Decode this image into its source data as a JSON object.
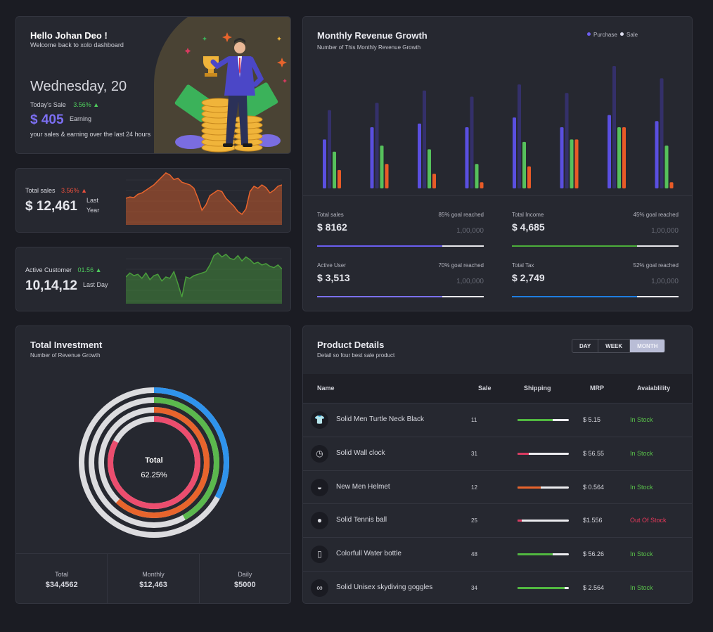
{
  "welcome": {
    "greeting": "Hello Johan Deo !",
    "subtitle": "Welcome back to xolo dashboard",
    "day": "Wednesday, 20",
    "todays_sale_label": "Today's Sale",
    "todays_sale_pct": "3.56% ▲",
    "earning_value": "$ 405",
    "earning_label": "Earning",
    "note": "your sales & earning over the last 24 hours"
  },
  "total_sales_card": {
    "label": "Total sales",
    "pct": "3.56% ▲",
    "value": "$ 12,461",
    "period_line1": "Last",
    "period_line2": "Year",
    "color": "#e8642c",
    "trend": [
      40,
      42,
      41,
      46,
      48,
      52,
      56,
      60,
      66,
      72,
      78,
      75,
      68,
      70,
      64,
      62,
      60,
      55,
      40,
      22,
      30,
      44,
      48,
      52,
      50,
      40,
      34,
      28,
      20,
      16,
      24,
      50,
      58,
      55,
      60,
      56,
      48,
      52,
      58,
      60
    ]
  },
  "active_customer_card": {
    "label": "Active Customer",
    "pct": "01.56 ▲",
    "value": "10,14,12",
    "period": "Last Day",
    "color": "#4a9e3c",
    "trend": [
      40,
      46,
      42,
      44,
      38,
      46,
      36,
      42,
      44,
      34,
      40,
      38,
      48,
      30,
      10,
      40,
      38,
      42,
      44,
      46,
      48,
      58,
      72,
      76,
      70,
      74,
      68,
      66,
      72,
      64,
      70,
      66,
      60,
      62,
      58,
      60,
      56,
      54,
      58,
      52
    ]
  },
  "revenue": {
    "title": "Monthly Revenue Growth",
    "subtitle": "Number of This Monthly Revenue Growth",
    "legend": [
      {
        "name": "Purchase",
        "color": "#6d5ff0"
      },
      {
        "name": "Sale",
        "color": "#dfe0f0"
      }
    ],
    "series_colors": [
      "#5a4fe0",
      "#34306a",
      "#56c15c",
      "#e85b27"
    ],
    "groups": [
      [
        40,
        64,
        30,
        15
      ],
      [
        50,
        70,
        35,
        20
      ],
      [
        53,
        80,
        32,
        12
      ],
      [
        50,
        75,
        20,
        5
      ],
      [
        58,
        85,
        38,
        18
      ],
      [
        50,
        78,
        40,
        40
      ],
      [
        60,
        100,
        50,
        50
      ],
      [
        55,
        90,
        35,
        5
      ]
    ],
    "metrics": [
      {
        "label": "Total sales",
        "goal": "85% goal reached",
        "value": "$  8162",
        "target": "1,00,000",
        "fill": 0.75,
        "color": "#6b5ef0"
      },
      {
        "label": "Total Income",
        "goal": "45% goal reached",
        "value": "$  4,685",
        "target": "1,00,000",
        "fill": 0.75,
        "color": "#4cae3a"
      },
      {
        "label": "Active User",
        "goal": "70% goal reached",
        "value": "$  3,513",
        "target": "1,00,000",
        "fill": 0.75,
        "color": "#7b70ee"
      },
      {
        "label": "Total Tax",
        "goal": "52% goal reached",
        "value": "$  2,749",
        "target": "1,00,000",
        "fill": 0.75,
        "color": "#1f7ee0"
      }
    ]
  },
  "investment": {
    "title": "Total Investment",
    "subtitle": "Number of Revenue Growth",
    "center_label": "Total",
    "center_value": "62.25%",
    "rings": [
      {
        "color": "#2f93ec",
        "fraction": 0.33
      },
      {
        "color": "#5bb84d",
        "fraction": 0.42
      },
      {
        "color": "#e8642c",
        "fraction": 0.62
      },
      {
        "color": "#ec4d6e",
        "fraction": 0.83
      }
    ],
    "totals": [
      {
        "label": "Total",
        "value": "$34,4562"
      },
      {
        "label": "Monthly",
        "value": "$12,463"
      },
      {
        "label": "Daily",
        "value": "$5000"
      }
    ]
  },
  "products": {
    "title": "Product Details",
    "subtitle": "Detail so four best sale product",
    "range_buttons": [
      "DAY",
      "WEEK",
      "MONTH"
    ],
    "columns": [
      "Name",
      "Sale",
      "Shipping",
      "MRP",
      "Avaiablility"
    ],
    "rows": [
      {
        "icon": "tshirt-icon",
        "glyph": "👕",
        "name": "Solid Men Turtle Neck Black",
        "sale": "11",
        "shipping": 0.68,
        "ship_color": "#51b840",
        "mrp": "$ 5.15",
        "availability": "In Stock",
        "avail_color": "#59c14a"
      },
      {
        "icon": "clock-icon",
        "glyph": "◷",
        "name": "Solid Wall clock",
        "sale": "31",
        "shipping": 0.22,
        "ship_color": "#d93a60",
        "mrp": "$ 56.55",
        "availability": "In Stock",
        "avail_color": "#59c14a"
      },
      {
        "icon": "helmet-icon",
        "glyph": "◒",
        "name": "New Men Helmet",
        "sale": "12",
        "shipping": 0.45,
        "ship_color": "#e8642c",
        "mrp": "$ 0.564",
        "availability": "In Stock",
        "avail_color": "#59c14a"
      },
      {
        "icon": "tennis-ball-icon",
        "glyph": "●",
        "name": "Solid Tennis ball",
        "sale": "25",
        "shipping": 0.08,
        "ship_color": "#d93a60",
        "mrp": "$1.556",
        "availability": "Out Of Stock",
        "avail_color": "#e8385a"
      },
      {
        "icon": "water-bottle-icon",
        "glyph": "▯",
        "name": "Colorfull Water bottle",
        "sale": "48",
        "shipping": 0.68,
        "ship_color": "#51b840",
        "mrp": "$ 56.26",
        "availability": "In Stock",
        "avail_color": "#59c14a"
      },
      {
        "icon": "goggles-icon",
        "glyph": "∞",
        "name": "Solid Unisex skydiving goggles",
        "sale": "34",
        "shipping": 0.92,
        "ship_color": "#51b840",
        "mrp": "$ 2.564",
        "availability": "In Stock",
        "avail_color": "#59c14a"
      }
    ]
  }
}
